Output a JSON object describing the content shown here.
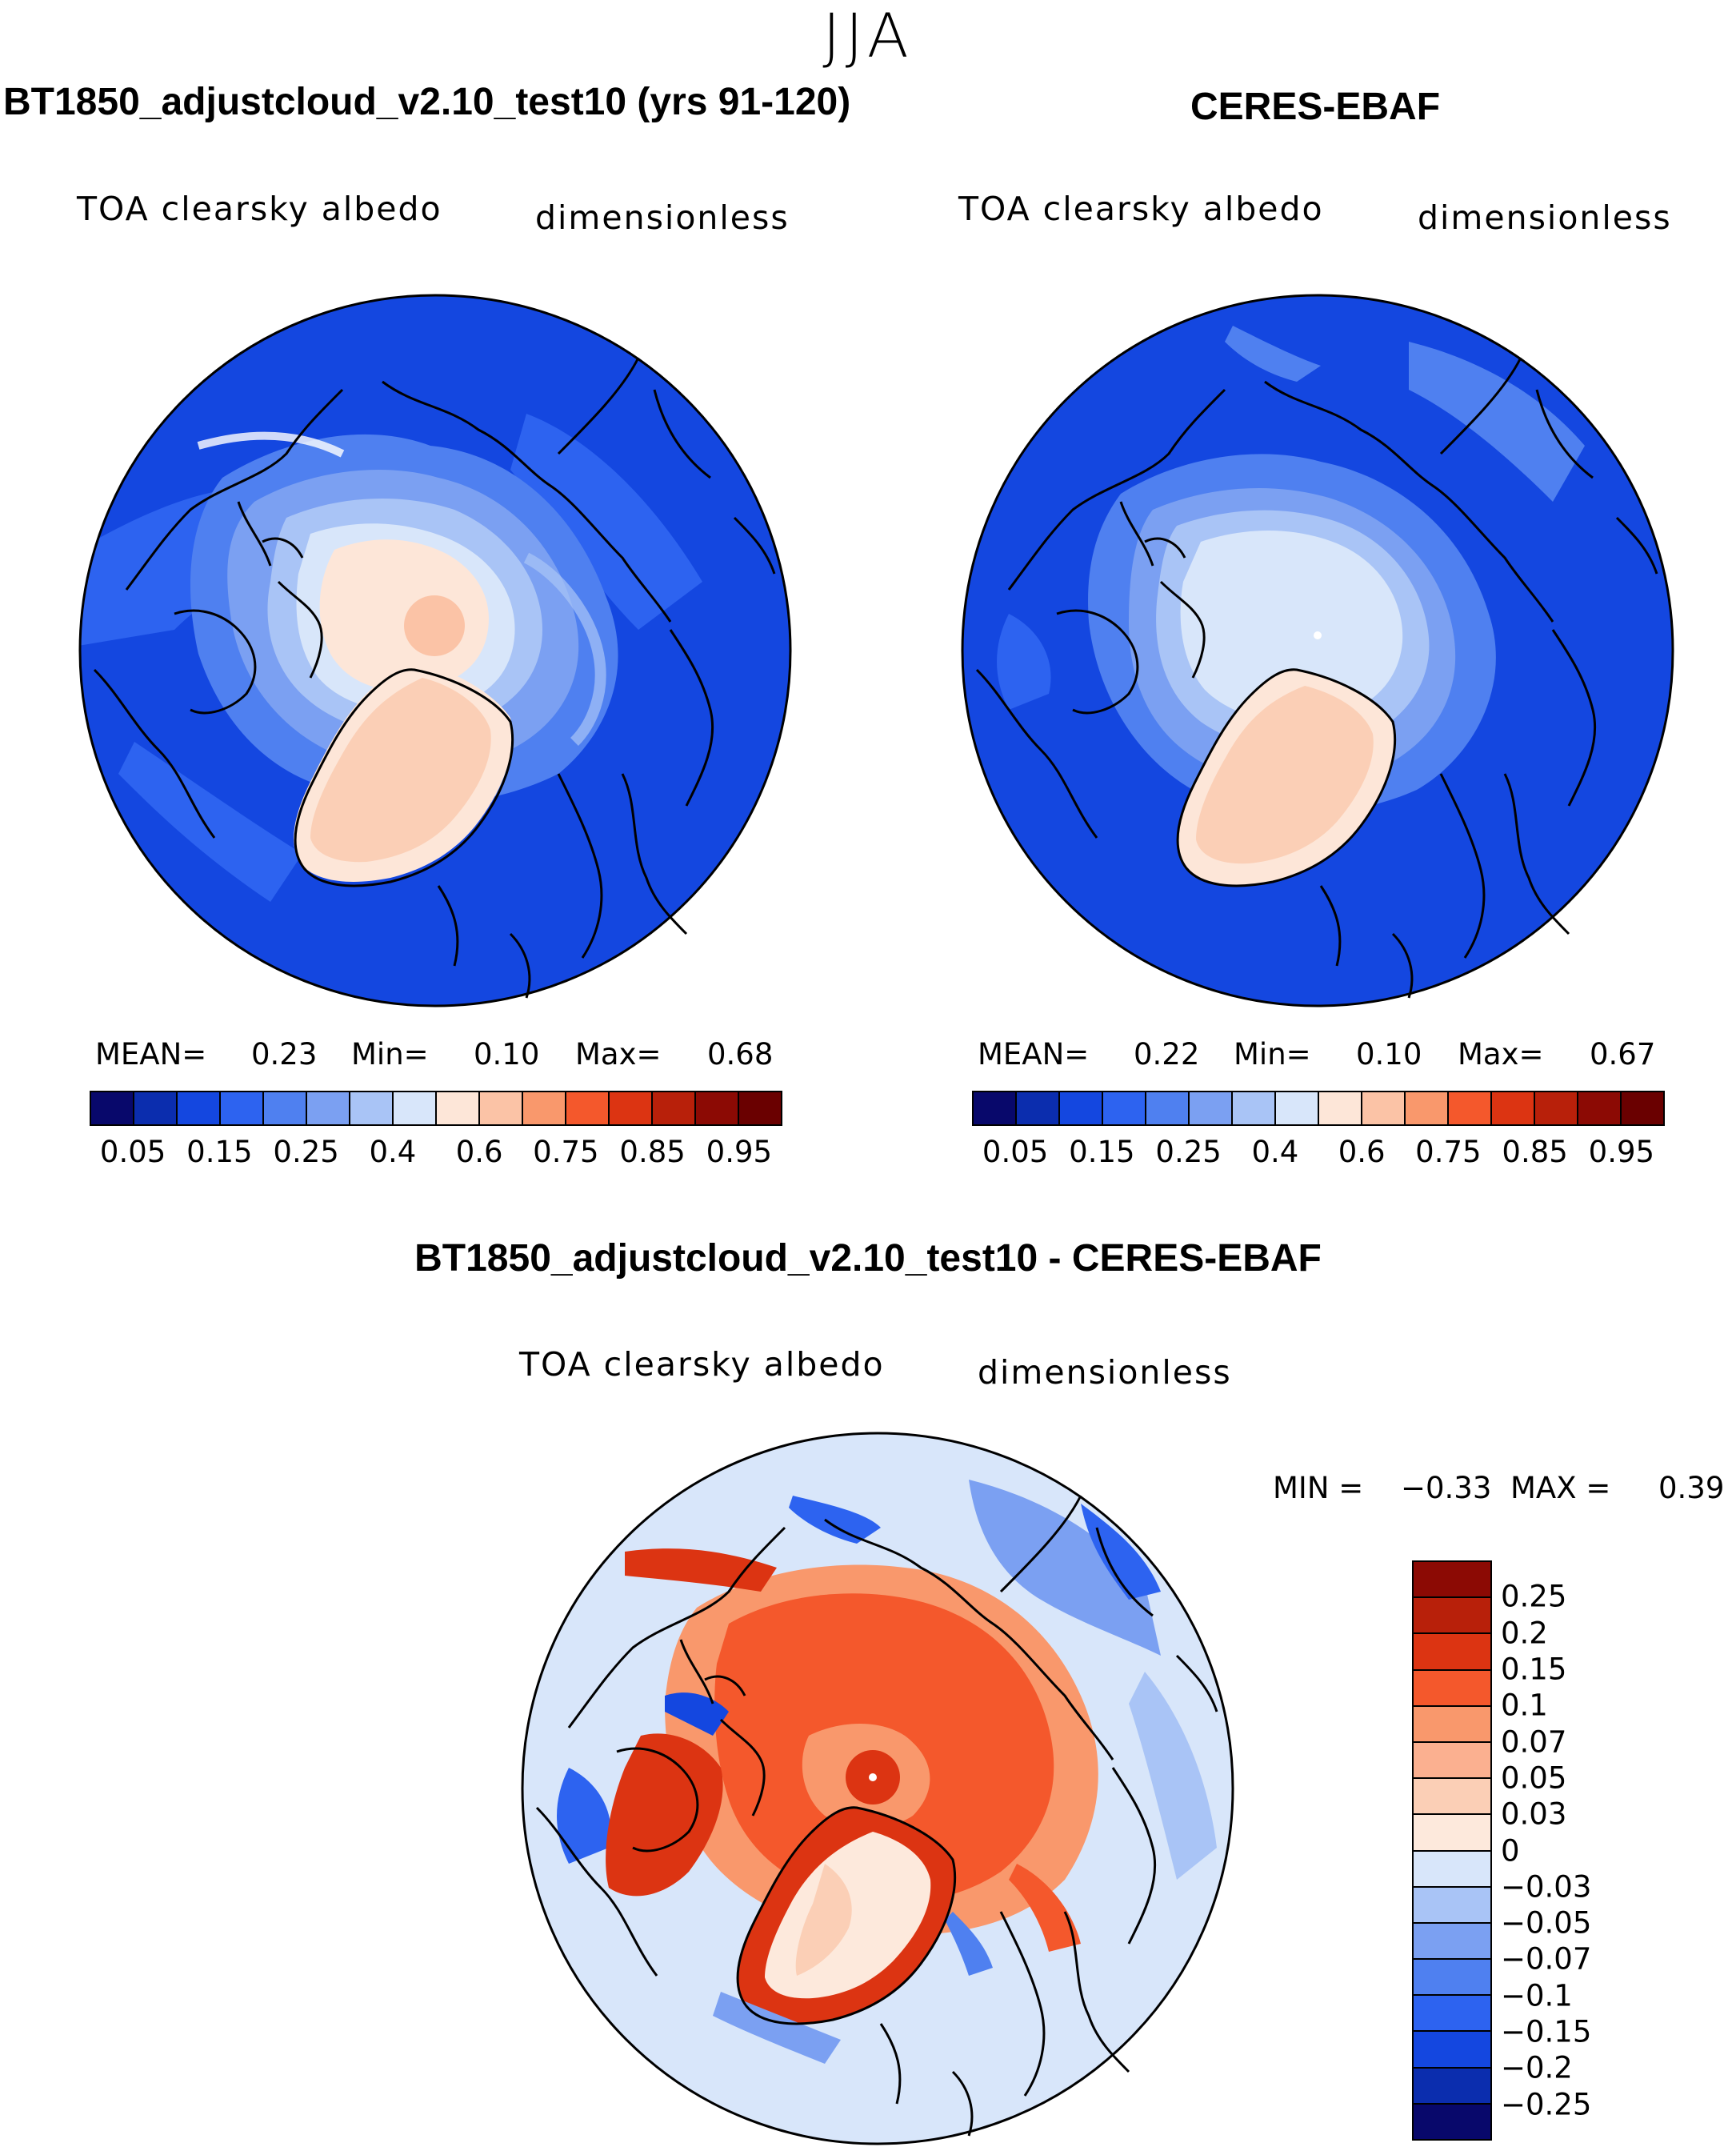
{
  "season": "JJA",
  "chart_data": [
    {
      "type": "heatmap",
      "projection": "north-polar-stereographic",
      "title": "BT1850_adjustcloud_v2.10_test10 (yrs 91-120)",
      "variable": "TOA clearsky albedo",
      "units": "dimensionless",
      "stats": {
        "mean_label": "MEAN=",
        "mean": "0.23",
        "min_label": "Min=",
        "min": "0.10",
        "max_label": "Max=",
        "max": "0.68"
      },
      "colorbar_ticks": [
        "0.05",
        "0.15",
        "0.25",
        "0.4",
        "0.6",
        "0.75",
        "0.85",
        "0.95"
      ],
      "colorbar_levels": [
        0.05,
        0.1,
        0.15,
        0.2,
        0.25,
        0.3,
        0.4,
        0.5,
        0.6,
        0.7,
        0.75,
        0.8,
        0.85,
        0.9,
        0.95
      ],
      "colorbar_colors": [
        "#08086b",
        "#0b2dae",
        "#1447e0",
        "#2d63f0",
        "#4f80f0",
        "#7ba0f2",
        "#a9c4f6",
        "#d8e6fa",
        "#fde6d8",
        "#fbc3a6",
        "#f9986c",
        "#f4582c",
        "#dc3412",
        "#b8200a",
        "#8c0a04",
        "#6a0000"
      ]
    },
    {
      "type": "heatmap",
      "projection": "north-polar-stereographic",
      "title": "CERES-EBAF",
      "variable": "TOA clearsky albedo",
      "units": "dimensionless",
      "stats": {
        "mean_label": "MEAN=",
        "mean": "0.22",
        "min_label": "Min=",
        "min": "0.10",
        "max_label": "Max=",
        "max": "0.67"
      },
      "colorbar_ticks": [
        "0.05",
        "0.15",
        "0.25",
        "0.4",
        "0.6",
        "0.75",
        "0.85",
        "0.95"
      ],
      "colorbar_levels": [
        0.05,
        0.1,
        0.15,
        0.2,
        0.25,
        0.3,
        0.4,
        0.5,
        0.6,
        0.7,
        0.75,
        0.8,
        0.85,
        0.9,
        0.95
      ],
      "colorbar_colors": [
        "#08086b",
        "#0b2dae",
        "#1447e0",
        "#2d63f0",
        "#4f80f0",
        "#7ba0f2",
        "#a9c4f6",
        "#d8e6fa",
        "#fde6d8",
        "#fbc3a6",
        "#f9986c",
        "#f4582c",
        "#dc3412",
        "#b8200a",
        "#8c0a04",
        "#6a0000"
      ]
    },
    {
      "type": "heatmap",
      "projection": "north-polar-stereographic",
      "title": "BT1850_adjustcloud_v2.10_test10 - CERES-EBAF",
      "variable": "TOA clearsky albedo",
      "units": "dimensionless",
      "stats": {
        "min_label": "MIN =",
        "min": "−0.33",
        "max_label": "MAX =",
        "max": "0.39"
      },
      "colorbar_ticks": [
        "0.25",
        "0.2",
        "0.15",
        "0.1",
        "0.07",
        "0.05",
        "0.03",
        "0",
        "−0.03",
        "−0.05",
        "−0.07",
        "−0.1",
        "−0.15",
        "−0.2",
        "−0.25"
      ],
      "colorbar_levels": [
        0.25,
        0.2,
        0.15,
        0.1,
        0.07,
        0.05,
        0.03,
        0,
        -0.03,
        -0.05,
        -0.07,
        -0.1,
        -0.15,
        -0.2,
        -0.25
      ],
      "colorbar_colors": [
        "#8c0a04",
        "#b8200a",
        "#dc3412",
        "#f4582c",
        "#f9986c",
        "#fbb090",
        "#fbcfb6",
        "#fde9dc",
        "#d8e6fa",
        "#a9c4f6",
        "#7ba0f2",
        "#4f80f0",
        "#2d63f0",
        "#1447e0",
        "#0b2dae",
        "#08086b"
      ]
    }
  ]
}
